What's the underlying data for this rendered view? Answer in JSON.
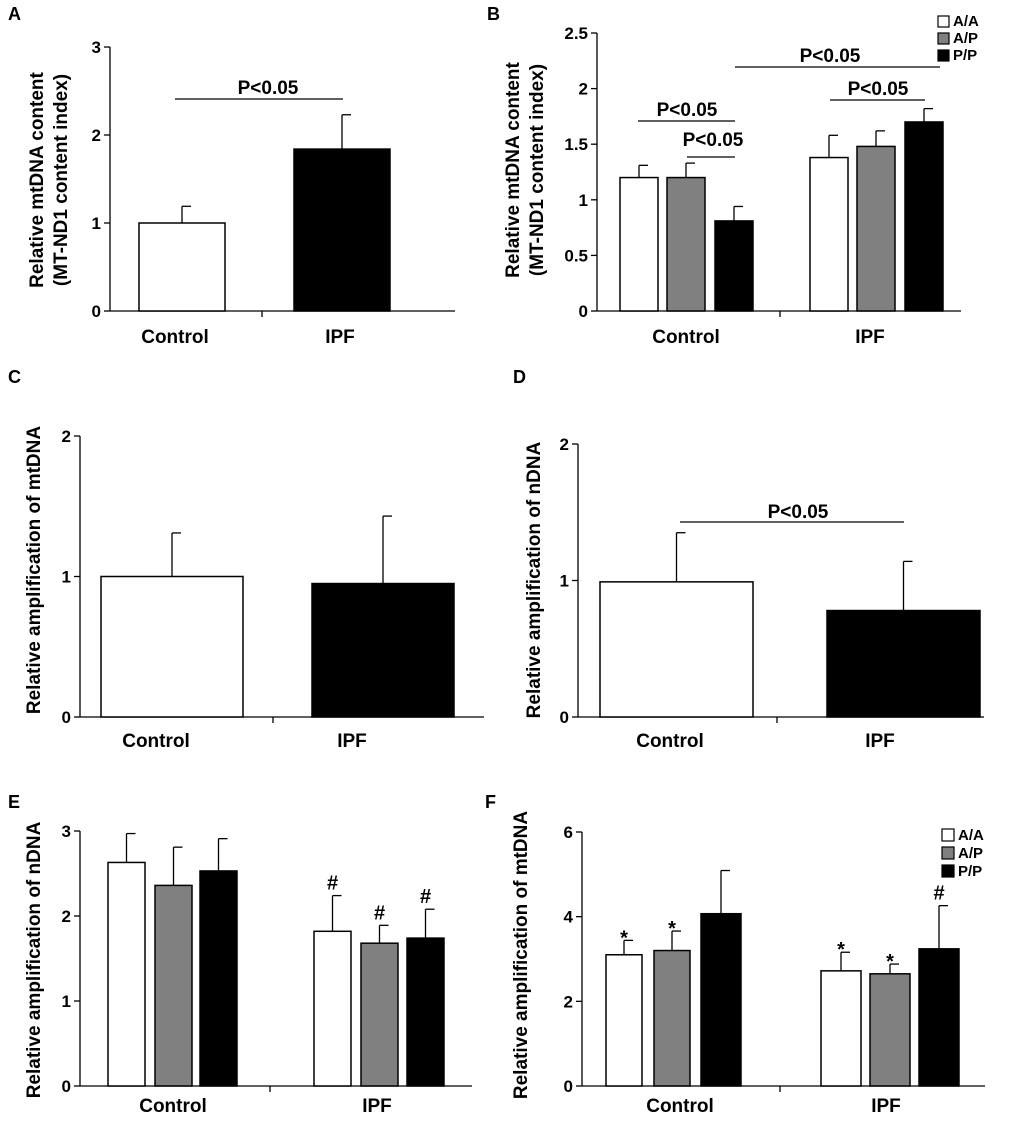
{
  "chart_data": [
    {
      "id": "A",
      "type": "bar",
      "panel_label": "A",
      "ylabel": "Relative mtDNA content",
      "ylabel2": "(MT-ND1 content index)",
      "ylim": [
        0,
        3
      ],
      "yticks": [
        "0",
        "1",
        "2",
        "3"
      ],
      "categories": [
        "Control",
        "IPF"
      ],
      "series": [
        {
          "name": "",
          "color": "#ffffff",
          "values": [
            1.0,
            1.84
          ],
          "errors": [
            0.19,
            0.39
          ]
        }
      ],
      "annotations": [
        {
          "text": "P<0.05"
        }
      ]
    },
    {
      "id": "B",
      "type": "bar",
      "panel_label": "B",
      "ylabel": "Relative mtDNA content",
      "ylabel2": "(MT-ND1 content index)",
      "ylim": [
        0,
        2.5
      ],
      "yticks": [
        "0",
        "0.5",
        "1",
        "1.5",
        "2",
        "2.5"
      ],
      "categories": [
        "Control",
        "IPF"
      ],
      "legend": [
        "A/A",
        "A/P",
        "P/P"
      ],
      "series": [
        {
          "name": "A/A",
          "color": "#ffffff",
          "values": [
            1.2,
            1.38
          ],
          "errors": [
            0.11,
            0.2
          ]
        },
        {
          "name": "A/P",
          "color": "#808080",
          "values": [
            1.2,
            1.48
          ],
          "errors": [
            0.13,
            0.14
          ]
        },
        {
          "name": "P/P",
          "color": "#000000",
          "values": [
            0.81,
            1.7
          ],
          "errors": [
            0.13,
            0.12
          ]
        }
      ],
      "annotations": [
        {
          "text": "P<0.05"
        },
        {
          "text": "P<0.05"
        },
        {
          "text": "P<0.05"
        },
        {
          "text": "P<0.05"
        }
      ]
    },
    {
      "id": "C",
      "type": "bar",
      "panel_label": "C",
      "ylabel": "Relative amplification of mtDNA",
      "ylabel2": "",
      "ylim": [
        0,
        2
      ],
      "yticks": [
        "0",
        "1",
        "2"
      ],
      "categories": [
        "Control",
        "IPF"
      ],
      "series": [
        {
          "name": "",
          "color": "#ffffff",
          "values": [
            1.0,
            0.95
          ],
          "errors": [
            0.31,
            0.48
          ]
        }
      ],
      "annotations": []
    },
    {
      "id": "D",
      "type": "bar",
      "panel_label": "D",
      "ylabel": "Relative amplification of nDNA",
      "ylabel2": "",
      "ylim": [
        0,
        2
      ],
      "yticks": [
        "0",
        "1",
        "2"
      ],
      "categories": [
        "Control",
        "IPF"
      ],
      "series": [
        {
          "name": "",
          "color": "#ffffff",
          "values": [
            0.99,
            0.78
          ],
          "errors": [
            0.36,
            0.36
          ]
        }
      ],
      "annotations": [
        {
          "text": "P<0.05"
        }
      ]
    },
    {
      "id": "E",
      "type": "bar",
      "panel_label": "E",
      "ylabel": "Relative amplification of nDNA",
      "ylabel2": "",
      "ylim": [
        0,
        3
      ],
      "yticks": [
        "0",
        "1",
        "2",
        "3"
      ],
      "categories": [
        "Control",
        "IPF"
      ],
      "series": [
        {
          "name": "A/A",
          "color": "#ffffff",
          "values": [
            2.63,
            1.82
          ],
          "errors": [
            0.34,
            0.42
          ],
          "marks": [
            "",
            "#"
          ]
        },
        {
          "name": "A/P",
          "color": "#808080",
          "values": [
            2.36,
            1.68
          ],
          "errors": [
            0.45,
            0.21
          ],
          "marks": [
            "",
            "#"
          ]
        },
        {
          "name": "P/P",
          "color": "#000000",
          "values": [
            2.53,
            1.74
          ],
          "errors": [
            0.38,
            0.34
          ],
          "marks": [
            "",
            "#"
          ]
        }
      ],
      "annotations": []
    },
    {
      "id": "F",
      "type": "bar",
      "panel_label": "F",
      "ylabel": "Relative amplification of mtDNA",
      "ylabel2": "",
      "ylim": [
        0,
        6
      ],
      "yticks": [
        "0",
        "2",
        "4",
        "6"
      ],
      "categories": [
        "Control",
        "IPF"
      ],
      "legend": [
        "A/A",
        "A/P",
        "P/P"
      ],
      "series": [
        {
          "name": "A/A",
          "color": "#ffffff",
          "values": [
            3.1,
            2.72
          ],
          "errors": [
            0.34,
            0.44
          ],
          "marks": [
            "*",
            "*"
          ]
        },
        {
          "name": "A/P",
          "color": "#808080",
          "values": [
            3.2,
            2.65
          ],
          "errors": [
            0.46,
            0.23
          ],
          "marks": [
            "*",
            "*"
          ]
        },
        {
          "name": "P/P",
          "color": "#000000",
          "values": [
            4.07,
            3.24
          ],
          "errors": [
            1.02,
            1.02
          ],
          "marks": [
            "",
            "#"
          ]
        }
      ],
      "annotations": []
    }
  ]
}
